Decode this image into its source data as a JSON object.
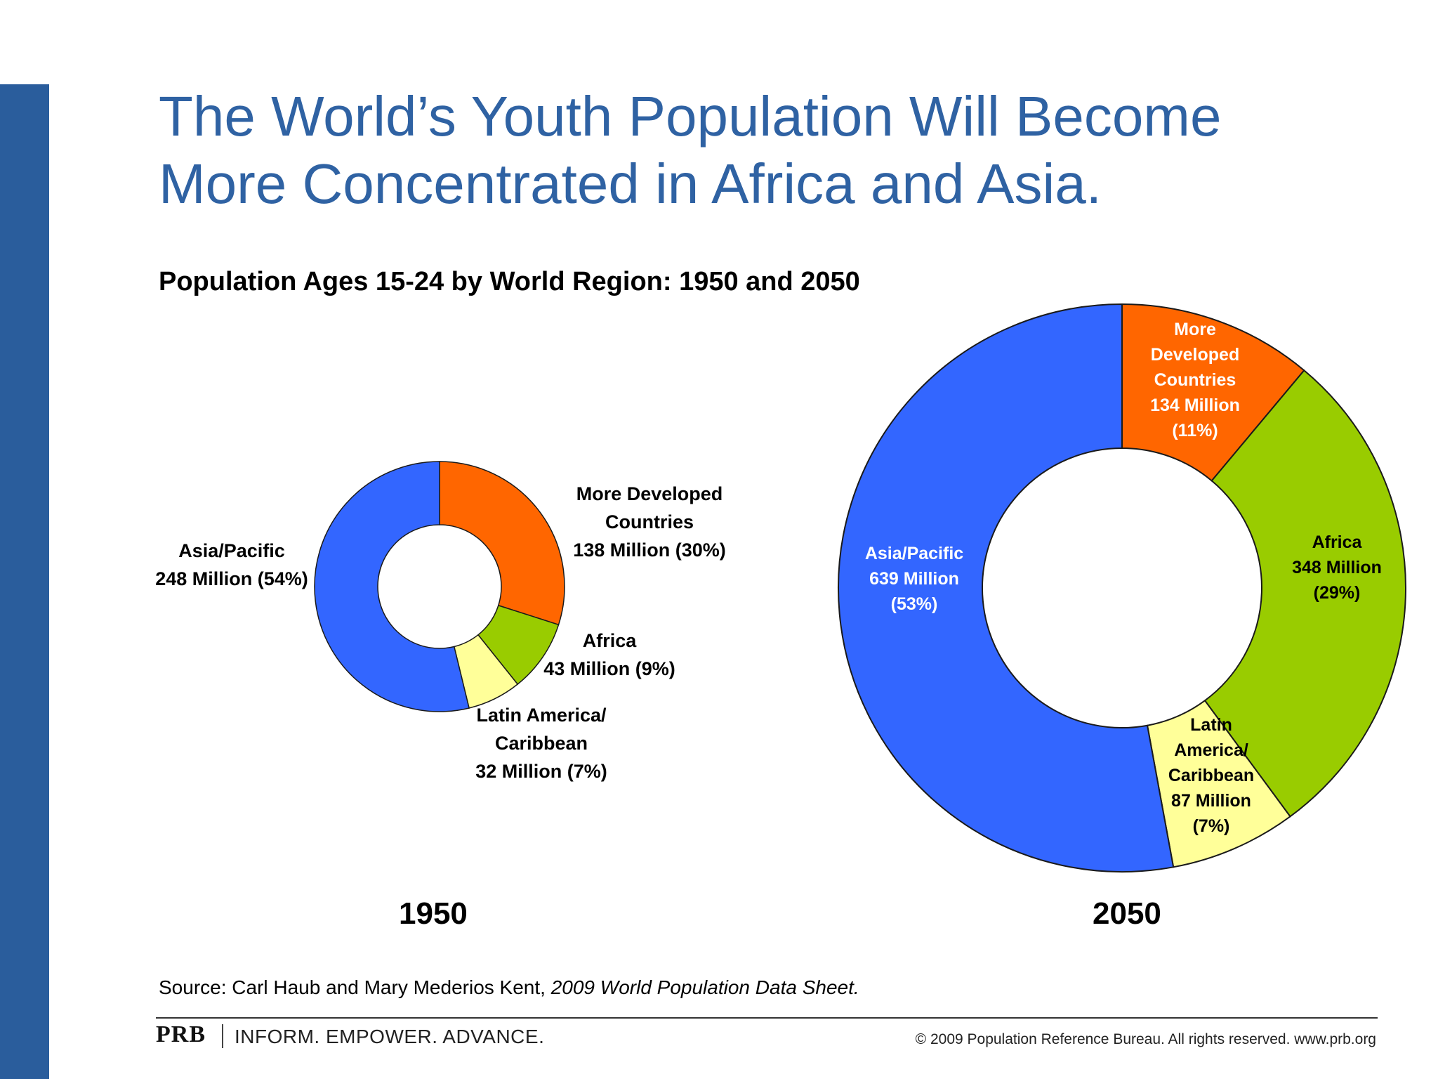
{
  "slide": {
    "title_line1": "The World’s Youth Population Will Become",
    "title_line2": "More Concentrated in Africa and Asia.",
    "subtitle": "Population Ages 15-24 by World Region: 1950 and 2050",
    "source_prefix": "Source: Carl Haub and Mary Mederios Kent, ",
    "source_title": "2009 World Population Data Sheet.",
    "footer": {
      "logo": "PRB",
      "tagline": "INFORM. EMPOWER. ADVANCE.",
      "copyright": "© 2009 Population Reference Bureau. All rights reserved. www.prb.org"
    }
  },
  "colors": {
    "more_developed": "#ff6600",
    "africa": "#99cc00",
    "latin_america": "#ffff99",
    "asia_pacific": "#3366ff",
    "title": "#2f62a3",
    "side_bar": "#2a5d9c"
  },
  "chart_data": [
    {
      "type": "pie",
      "title": "1950",
      "categories": [
        "More Developed Countries",
        "Africa",
        "Latin America/ Caribbean",
        "Asia/Pacific"
      ],
      "values": [
        138,
        43,
        32,
        248
      ],
      "percents": [
        30,
        9,
        7,
        54
      ],
      "unit": "Million",
      "labels": [
        [
          "More Developed",
          "Countries",
          "138 Million (30%)"
        ],
        [
          "Africa",
          "43 Million (9%)"
        ],
        [
          "Latin America/",
          "Caribbean",
          "32 Million (7%)"
        ],
        [
          "Asia/Pacific",
          "248 Million (54%)"
        ]
      ]
    },
    {
      "type": "pie",
      "title": "2050",
      "categories": [
        "More Developed Countries",
        "Africa",
        "Latin America/ Caribbean",
        "Asia/Pacific"
      ],
      "values": [
        134,
        348,
        87,
        639
      ],
      "percents": [
        11,
        29,
        7,
        53
      ],
      "unit": "Million",
      "labels": [
        [
          "More",
          "Developed",
          "Countries",
          "134 Million",
          "(11%)"
        ],
        [
          "Africa",
          "348 Million",
          "(29%)"
        ],
        [
          "Latin",
          "America/",
          "Caribbean",
          "87 Million",
          "(7%)"
        ],
        [
          "Asia/Pacific",
          "639 Million",
          "(53%)"
        ]
      ]
    }
  ]
}
